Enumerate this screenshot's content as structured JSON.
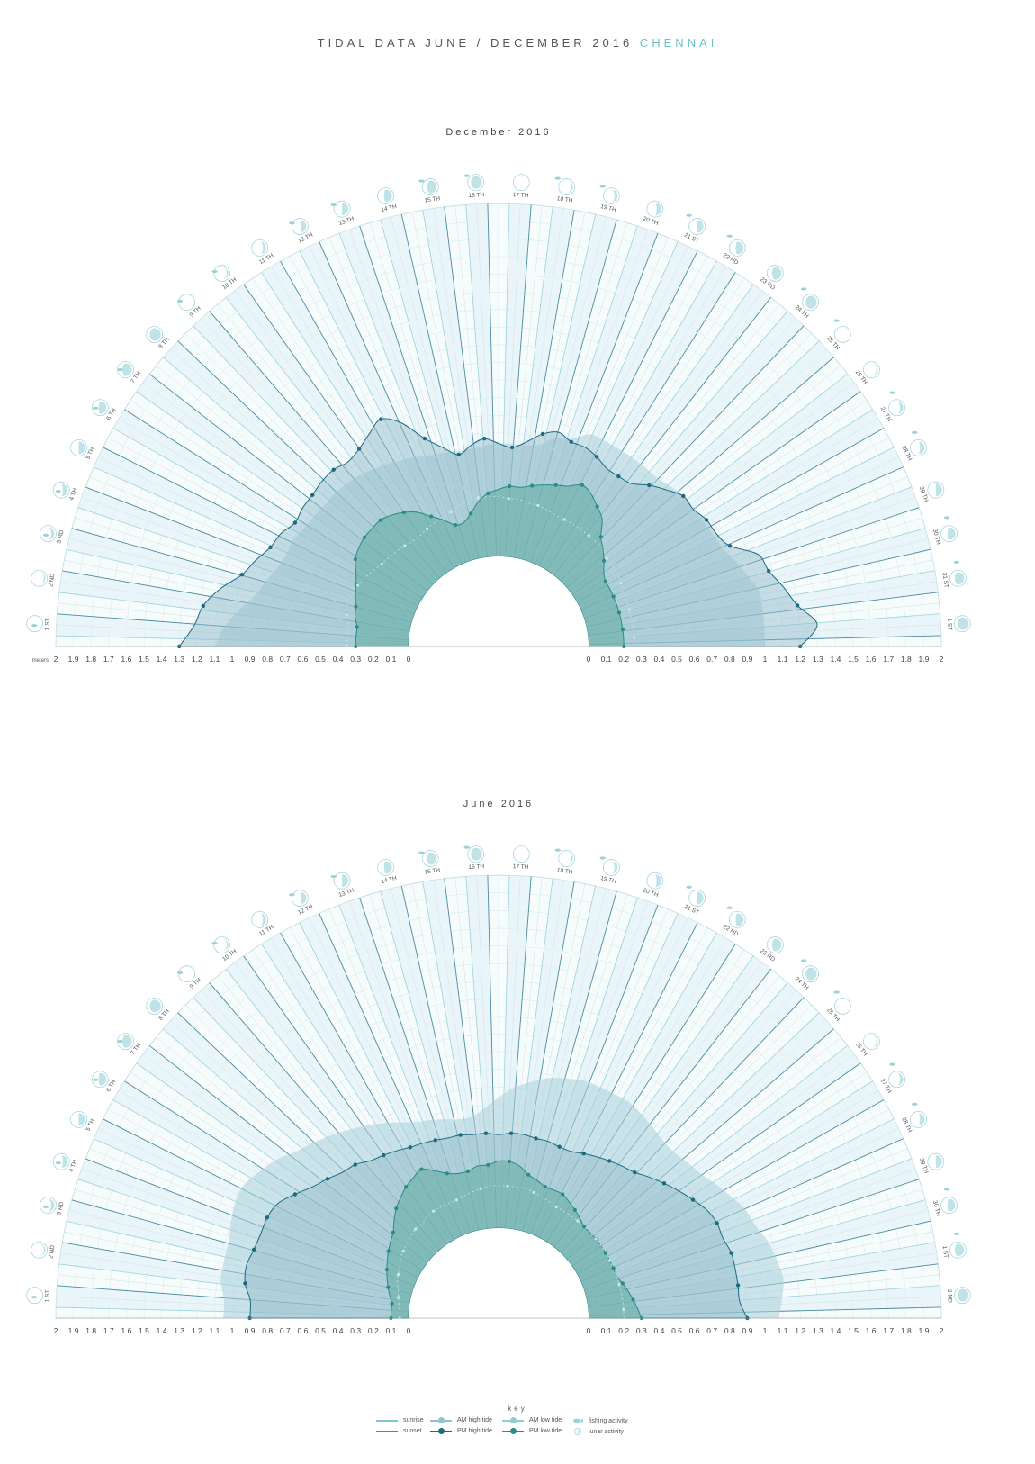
{
  "header": {
    "title_main": "TIDAL DATA JUNE / DECEMBER 2016",
    "title_accent": "CHENNAI"
  },
  "colors": {
    "accent": "#69c3c8",
    "sunrise": "#7fc6d4",
    "sunset": "#4a8ba0",
    "am_high": "#8fc3cf",
    "pm_high": "#1d6a80",
    "am_low": "#8ecfcf",
    "pm_low": "#2a8c84",
    "fan_light": "#e4f2f6",
    "grid": "#b8d7df"
  },
  "chart_data": [
    {
      "type": "radial-area",
      "title": "December 2016",
      "meters_label": "meters",
      "left_ticks": [
        "2",
        "1.9",
        "1.8",
        "1.7",
        "1.6",
        "1.5",
        "1.4",
        "1.3",
        "1.2",
        "1.1",
        "1",
        "0.9",
        "0.8",
        "0.7",
        "0.6",
        "0.5",
        "0.4",
        "0.3",
        "0.2",
        "0.1",
        "0"
      ],
      "right_ticks": [
        "0",
        "0.1",
        "0.2",
        "0.3",
        "0.4",
        "0.5",
        "0.6",
        "0.7",
        "0.8",
        "0.9",
        "1",
        "1.1",
        "1.2",
        "1.3",
        "1.4",
        "1.5",
        "1.6",
        "1.7",
        "1.8",
        "1.9",
        "2"
      ],
      "days": [
        "1",
        "2",
        "3",
        "4",
        "5",
        "6",
        "7",
        "8",
        "9",
        "10",
        "11",
        "12",
        "13",
        "14",
        "15",
        "16",
        "17",
        "18",
        "19",
        "20",
        "21",
        "22",
        "23",
        "24",
        "25",
        "26",
        "27",
        "28",
        "29",
        "30",
        "31",
        "1"
      ],
      "day_suffix": [
        "ST",
        "ND",
        "RD",
        "TH",
        "TH",
        "TH",
        "TH",
        "TH",
        "TH",
        "TH",
        "TH",
        "TH",
        "TH",
        "TH",
        "TH",
        "TH",
        "TH",
        "TH",
        "TH",
        "TH",
        "ST",
        "ND",
        "RD",
        "TH",
        "TH",
        "TH",
        "TH",
        "TH",
        "TH",
        "TH",
        "ST",
        "ST"
      ],
      "x_range_meters": [
        0,
        2
      ],
      "pm_high_tide": [
        1.3,
        1.22,
        1.18,
        1.1,
        1.0,
        0.95,
        0.9,
        0.88,
        0.84,
        0.85,
        0.85,
        0.86,
        0.86,
        0.84,
        0.86,
        0.9,
        0.94,
        0.87,
        0.74,
        0.66,
        0.6,
        0.64,
        0.67,
        0.64,
        0.62,
        0.66,
        0.72,
        0.75,
        0.72,
        0.72,
        0.7,
        0.67,
        0.67,
        0.68,
        0.74,
        0.79,
        0.84,
        0.84,
        0.87,
        0.88,
        0.92,
        1.05,
        1.08,
        1.14,
        1.2,
        1.3,
        1.2
      ],
      "am_high_tide": [
        1.1,
        1.05,
        0.98,
        0.9,
        0.86,
        0.82,
        0.8,
        0.8,
        0.78,
        0.77,
        0.76,
        0.76,
        0.75,
        0.74,
        0.72,
        0.7,
        0.68,
        0.66,
        0.64,
        0.63,
        0.62,
        0.62,
        0.63,
        0.64,
        0.64,
        0.64,
        0.66,
        0.72,
        0.74,
        0.8,
        0.8,
        0.8,
        0.8,
        0.8,
        0.8,
        0.82,
        0.84,
        0.84,
        0.85,
        0.86,
        0.88,
        0.92,
        0.96,
        1.0,
        1.0,
        1.0,
        1.0
      ],
      "pm_low_tide": [
        0.3,
        0.3,
        0.3,
        0.32,
        0.33,
        0.35,
        0.37,
        0.4,
        0.44,
        0.46,
        0.47,
        0.47,
        0.47,
        0.45,
        0.42,
        0.38,
        0.32,
        0.27,
        0.22,
        0.22,
        0.26,
        0.32,
        0.36,
        0.38,
        0.4,
        0.4,
        0.42,
        0.44,
        0.46,
        0.48,
        0.52,
        0.5,
        0.46,
        0.42,
        0.34,
        0.3,
        0.26,
        0.22,
        0.2,
        0.2,
        0.2,
        0.2,
        0.2,
        0.2,
        0.2,
        0.2,
        0.2
      ],
      "am_low_tide": [
        0.35,
        0.35,
        0.35,
        0.37,
        0.38,
        0.37,
        0.36,
        0.34,
        0.32,
        0.3,
        0.29,
        0.28,
        0.27,
        0.26,
        0.26,
        0.27,
        0.28,
        0.29,
        0.3,
        0.32,
        0.33,
        0.34,
        0.34,
        0.34,
        0.33,
        0.33,
        0.32,
        0.32,
        0.31,
        0.3,
        0.3,
        0.3,
        0.3,
        0.3,
        0.3,
        0.3,
        0.28,
        0.28,
        0.28,
        0.27,
        0.26,
        0.26,
        0.26,
        0.26,
        0.26,
        0.26,
        0.26
      ]
    },
    {
      "type": "radial-area",
      "title": "June 2016",
      "meters_label": "",
      "left_ticks": [
        "2",
        "1.9",
        "1.8",
        "1.7",
        "1.6",
        "1.5",
        "1.4",
        "1.3",
        "1.2",
        "1.1",
        "1",
        "0.9",
        "0.8",
        "0.7",
        "0.6",
        "0.5",
        "0.4",
        "0.3",
        "0.2",
        "0.1",
        "0"
      ],
      "right_ticks": [
        "0",
        "0.1",
        "0.2",
        "0.3",
        "0.4",
        "0.5",
        "0.6",
        "0.7",
        "0.8",
        "0.9",
        "1",
        "1.1",
        "1.2",
        "1.3",
        "1.4",
        "1.5",
        "1.6",
        "1.7",
        "1.8",
        "1.9",
        "2"
      ],
      "days": [
        "1",
        "2",
        "3",
        "4",
        "5",
        "6",
        "7",
        "8",
        "9",
        "10",
        "11",
        "12",
        "13",
        "14",
        "15",
        "16",
        "17",
        "18",
        "19",
        "20",
        "21",
        "22",
        "23",
        "24",
        "25",
        "26",
        "27",
        "28",
        "29",
        "30",
        "1",
        "2"
      ],
      "day_suffix": [
        "ST",
        "ND",
        "RD",
        "TH",
        "TH",
        "TH",
        "TH",
        "TH",
        "TH",
        "TH",
        "TH",
        "TH",
        "TH",
        "TH",
        "TH",
        "TH",
        "TH",
        "TH",
        "TH",
        "TH",
        "ST",
        "ND",
        "RD",
        "TH",
        "TH",
        "TH",
        "TH",
        "TH",
        "TH",
        "TH",
        "ST",
        "ND"
      ],
      "x_range_meters": [
        0,
        2
      ],
      "pm_high_tide": [
        0.9,
        0.9,
        0.94,
        0.95,
        0.93,
        0.92,
        0.92,
        0.9,
        0.84,
        0.78,
        0.74,
        0.7,
        0.68,
        0.64,
        0.62,
        0.6,
        0.58,
        0.57,
        0.56,
        0.55,
        0.55,
        0.54,
        0.54,
        0.53,
        0.54,
        0.54,
        0.53,
        0.53,
        0.52,
        0.52,
        0.54,
        0.56,
        0.58,
        0.6,
        0.62,
        0.66,
        0.7,
        0.74,
        0.78,
        0.82,
        0.84,
        0.84,
        0.86,
        0.86,
        0.86,
        0.86,
        0.9
      ],
      "am_high_tide": [
        1.05,
        1.05,
        1.08,
        1.08,
        1.08,
        1.1,
        1.12,
        1.12,
        1.08,
        1.04,
        0.98,
        0.94,
        0.9,
        0.86,
        0.82,
        0.78,
        0.74,
        0.7,
        0.68,
        0.66,
        0.64,
        0.64,
        0.68,
        0.74,
        0.8,
        0.84,
        0.88,
        0.9,
        0.92,
        0.92,
        0.92,
        0.92,
        0.9,
        0.88,
        0.86,
        0.86,
        0.88,
        0.9,
        0.94,
        0.98,
        1.02,
        1.04,
        1.08,
        1.1,
        1.12,
        1.1,
        1.08
      ],
      "pm_low_tide": [
        0.1,
        0.1,
        0.1,
        0.12,
        0.14,
        0.16,
        0.18,
        0.2,
        0.22,
        0.24,
        0.26,
        0.3,
        0.34,
        0.37,
        0.4,
        0.42,
        0.44,
        0.4,
        0.36,
        0.34,
        0.34,
        0.36,
        0.36,
        0.38,
        0.38,
        0.36,
        0.32,
        0.3,
        0.28,
        0.28,
        0.28,
        0.26,
        0.24,
        0.22,
        0.2,
        0.2,
        0.2,
        0.2,
        0.2,
        0.2,
        0.2,
        0.2,
        0.22,
        0.24,
        0.26,
        0.28,
        0.3
      ],
      "am_low_tide": [
        0.05,
        0.05,
        0.06,
        0.07,
        0.08,
        0.1,
        0.11,
        0.12,
        0.14,
        0.15,
        0.16,
        0.17,
        0.18,
        0.18,
        0.19,
        0.2,
        0.2,
        0.2,
        0.2,
        0.21,
        0.22,
        0.23,
        0.24,
        0.24,
        0.24,
        0.24,
        0.24,
        0.23,
        0.22,
        0.21,
        0.2,
        0.2,
        0.2,
        0.2,
        0.2,
        0.2,
        0.2,
        0.2,
        0.2,
        0.2,
        0.2,
        0.2,
        0.2,
        0.2,
        0.2,
        0.2,
        0.2
      ]
    }
  ],
  "key": {
    "title": "key",
    "items": [
      {
        "label": "sunrise",
        "kind": "sunrise-line"
      },
      {
        "label": "sunset",
        "kind": "sunset-line"
      },
      {
        "label": "AM high tide",
        "kind": "am-high"
      },
      {
        "label": "PM high tide",
        "kind": "pm-high"
      },
      {
        "label": "AM low tide",
        "kind": "am-low"
      },
      {
        "label": "PM low tide",
        "kind": "pm-low"
      },
      {
        "label": "fishing activity",
        "kind": "fish"
      },
      {
        "label": "lunar activity",
        "kind": "moon"
      }
    ]
  }
}
